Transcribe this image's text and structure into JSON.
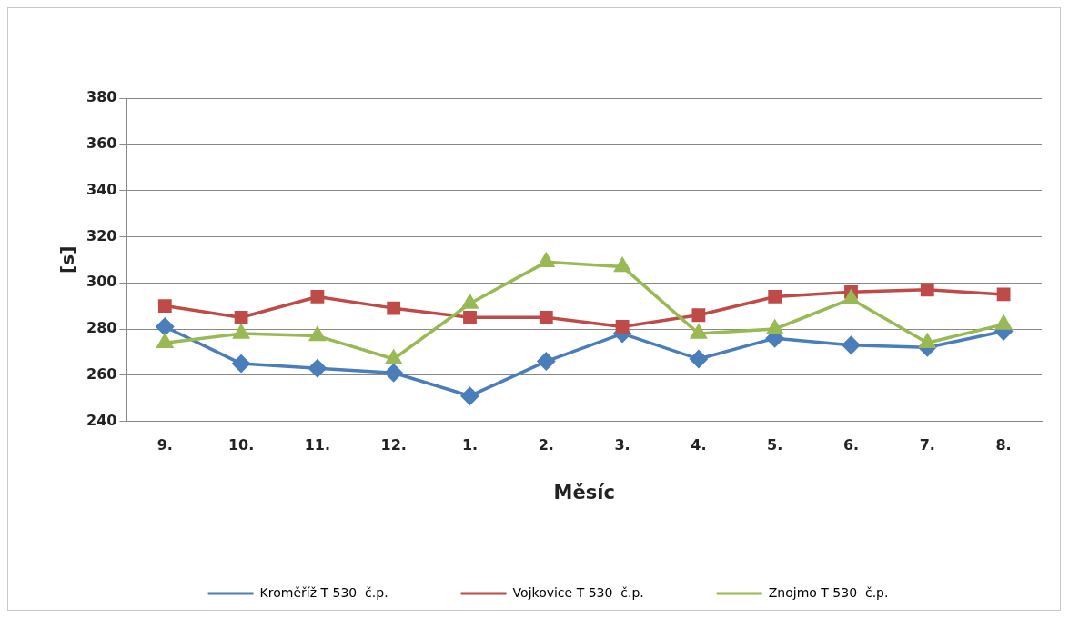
{
  "chart_data": {
    "type": "line",
    "xlabel": "Měsíc",
    "ylabel": "[s]",
    "categories": [
      "9.",
      "10.",
      "11.",
      "12.",
      "1.",
      "2.",
      "3.",
      "4.",
      "5.",
      "6.",
      "7.",
      "8."
    ],
    "ylim": [
      240,
      380
    ],
    "yticks": [
      240,
      260,
      280,
      300,
      320,
      340,
      360,
      380
    ],
    "grid": "y",
    "legend": "bottom",
    "series": [
      {
        "name": "Kroměříž T 530  č.p.",
        "color": "#4a7ebb",
        "marker": "diamond",
        "values": [
          281,
          265,
          263,
          261,
          251,
          266,
          278,
          267,
          276,
          273,
          272,
          279
        ]
      },
      {
        "name": "Vojkovice T 530  č.p.",
        "color": "#be4b48",
        "marker": "square",
        "values": [
          290,
          285,
          294,
          289,
          285,
          285,
          281,
          286,
          294,
          296,
          297,
          295
        ]
      },
      {
        "name": "Znojmo T 530  č.p.",
        "color": "#98b954",
        "marker": "triangle",
        "values": [
          274,
          278,
          277,
          267,
          291,
          309,
          307,
          278,
          280,
          293,
          274,
          282
        ]
      }
    ]
  }
}
